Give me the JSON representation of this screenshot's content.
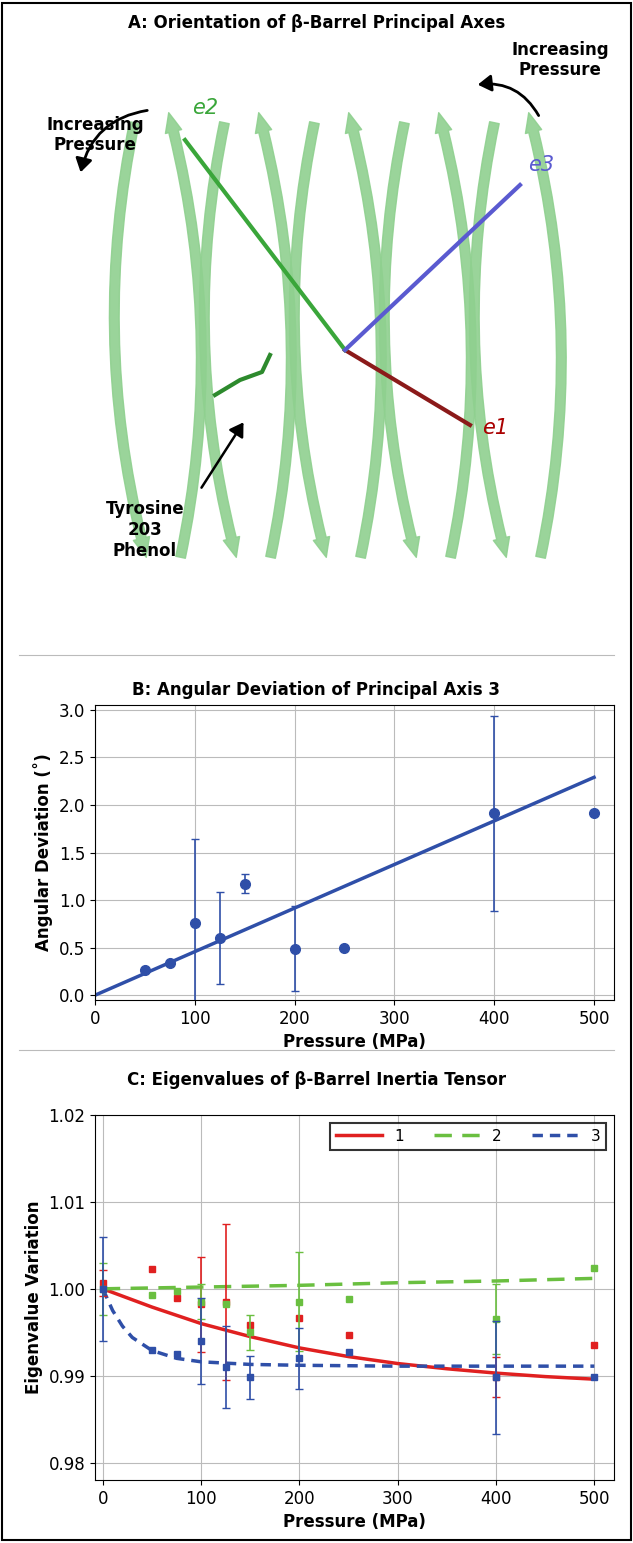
{
  "panel_a": {
    "title": "A: Orientation of β-Barrel Principal Axes",
    "axes": [
      {
        "label": "e1",
        "color": "#8b1a1a"
      },
      {
        "label": "e2",
        "color": "#3aa63a"
      },
      {
        "label": "e3",
        "color": "#5a5ad0"
      }
    ],
    "annotations": [
      "Increasing\nPressure",
      "Increasing\nPressure",
      "Tyrosine\n203\nPhenol"
    ]
  },
  "chart_data": [
    {
      "type": "scatter",
      "title": "B: Angular Deviation of Principal Axis 3",
      "x_label": "Pressure (MPa)",
      "y_label": "Angular Deviation (˚)",
      "xlim": [
        0,
        520
      ],
      "xticks": [
        0,
        100,
        200,
        300,
        400,
        500
      ],
      "ylim": [
        -0.05,
        3.05
      ],
      "yticks": [
        {
          "value": 0,
          "label": "0.0"
        },
        0.5,
        {
          "value": 1,
          "label": "1.0"
        },
        1.5,
        {
          "value": 2,
          "label": "2.0"
        },
        2.5,
        {
          "value": 3,
          "label": "3.0"
        }
      ],
      "grid": true,
      "marker": "circle",
      "series": [
        {
          "color": "#2f4fa8",
          "x": [
            50,
            75,
            100,
            125,
            150,
            200,
            250,
            400,
            500
          ],
          "values": [
            0.27,
            0.34,
            0.76,
            0.6,
            1.17,
            0.49,
            0.5,
            1.91,
            1.91
          ],
          "errors": [
            null,
            null,
            0.88,
            0.48,
            0.1,
            0.45,
            null,
            1.02,
            null
          ],
          "fit_x": [
            0,
            500
          ],
          "fit_values": [
            0,
            2.29
          ],
          "line_style": "solid"
        }
      ]
    },
    {
      "type": "scatter",
      "title": "C: Eigenvalues of β-Barrel Inertia Tensor",
      "x_label": "Pressure (MPa)",
      "y_label": "Eigenvalue Variation",
      "xlim": [
        -8,
        520
      ],
      "xticks": [
        0,
        100,
        200,
        300,
        400,
        500
      ],
      "ylim": [
        0.978,
        1.02
      ],
      "yticks": [
        0.98,
        0.99,
        {
          "value": 1,
          "label": "1.00"
        },
        1.01,
        1.02
      ],
      "grid": true,
      "legend": "upper right",
      "marker": "square",
      "series": [
        {
          "name": "1",
          "color": "#e02020",
          "line_style": "solid",
          "x": [
            0,
            50,
            75,
            100,
            125,
            150,
            200,
            250,
            400,
            500
          ],
          "values": [
            1.0007,
            1.0023,
            0.999,
            0.9982,
            0.9985,
            0.9958,
            0.9966,
            0.9947,
            0.9898,
            0.9935
          ],
          "errors": [
            0.0015,
            null,
            null,
            0.0055,
            0.009,
            null,
            null,
            null,
            0.0023,
            null
          ],
          "fit_x": [
            0,
            50,
            100,
            150,
            200,
            250,
            300,
            350,
            400,
            450,
            500
          ],
          "fit_values": [
            1.0,
            0.9979,
            0.996,
            0.9945,
            0.9932,
            0.9922,
            0.9914,
            0.9908,
            0.9903,
            0.9899,
            0.9896
          ]
        },
        {
          "name": "2",
          "color": "#6abf40",
          "line_style": "dashed",
          "x": [
            0,
            50,
            75,
            100,
            125,
            150,
            200,
            250,
            400,
            500
          ],
          "values": [
            1.0,
            0.9993,
            0.9997,
            0.9985,
            0.9983,
            0.995,
            0.9985,
            0.9988,
            0.9965,
            1.0024
          ],
          "errors": [
            0.003,
            null,
            null,
            0.002,
            null,
            0.002,
            0.0057,
            null,
            0.004,
            null
          ],
          "fit_x": [
            0,
            100,
            200,
            300,
            400,
            500
          ],
          "fit_values": [
            1.0,
            1.0002,
            1.0004,
            1.0007,
            1.0009,
            1.0012
          ]
        },
        {
          "name": "3",
          "color": "#2f4fa8",
          "line_style": "short_dashed",
          "x": [
            0,
            50,
            75,
            100,
            125,
            150,
            200,
            250,
            400,
            500
          ],
          "values": [
            1.0,
            0.993,
            0.9925,
            0.994,
            0.991,
            0.9898,
            0.992,
            0.9927,
            0.9898,
            0.9898
          ],
          "errors": [
            0.006,
            null,
            null,
            0.005,
            0.0047,
            0.0025,
            0.0035,
            null,
            0.0065,
            null
          ],
          "fit_x": [
            0,
            10,
            20,
            30,
            50,
            75,
            100,
            150,
            200,
            300,
            400,
            500
          ],
          "fit_values": [
            1.0,
            0.9975,
            0.9957,
            0.9944,
            0.9929,
            0.992,
            0.9916,
            0.9913,
            0.9912,
            0.9911,
            0.9911,
            0.9911
          ]
        }
      ]
    }
  ]
}
